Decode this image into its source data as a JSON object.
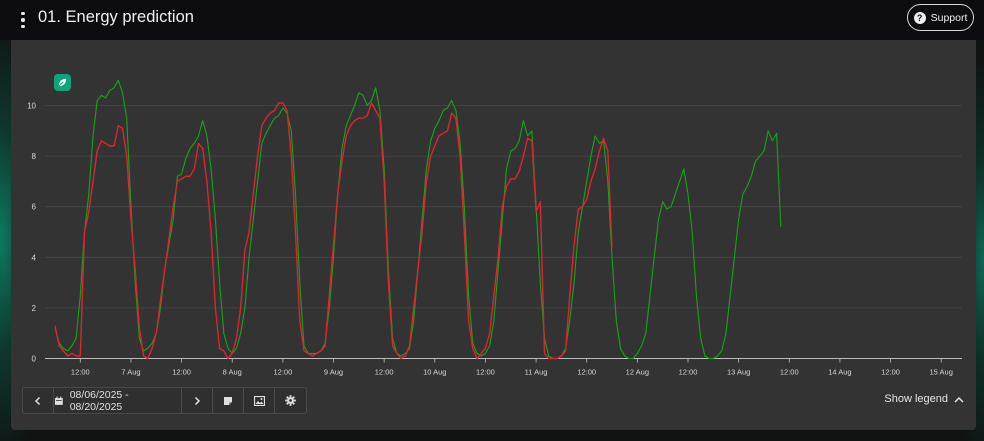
{
  "header": {
    "title": "01. Energy prediction",
    "support_label": "Support"
  },
  "controls": {
    "date_range": "08/06/2025 - 08/20/2025"
  },
  "legend": {
    "toggle_label": "Show legend"
  },
  "colors": {
    "actual": "#d9262f",
    "predicted": "#19a319",
    "badge": "#12a37c"
  },
  "chart_data": {
    "type": "line",
    "yticks": [
      0,
      2,
      4,
      6,
      8,
      10
    ],
    "ylim": [
      0,
      11
    ],
    "xlim": [
      0,
      222
    ],
    "xticks": [
      {
        "h": 6,
        "label": "12:00"
      },
      {
        "h": 18,
        "label": "7 Aug"
      },
      {
        "h": 30,
        "label": "12:00"
      },
      {
        "h": 42,
        "label": "8 Aug"
      },
      {
        "h": 54,
        "label": "12:00"
      },
      {
        "h": 66,
        "label": "9 Aug"
      },
      {
        "h": 78,
        "label": "12:00"
      },
      {
        "h": 90,
        "label": "10 Aug"
      },
      {
        "h": 102,
        "label": "12:00"
      },
      {
        "h": 114,
        "label": "11 Aug"
      },
      {
        "h": 126,
        "label": "12:00"
      },
      {
        "h": 138,
        "label": "12 Aug"
      },
      {
        "h": 150,
        "label": "12:00"
      },
      {
        "h": 162,
        "label": "13 Aug"
      },
      {
        "h": 174,
        "label": "12:00"
      },
      {
        "h": 186,
        "label": "14 Aug"
      },
      {
        "h": 198,
        "label": "12:00"
      },
      {
        "h": 210,
        "label": "15 Aug"
      }
    ],
    "series": [
      {
        "key": "predicted",
        "points": [
          [
            0,
            1.2
          ],
          [
            1,
            0.6
          ],
          [
            2,
            0.4
          ],
          [
            3,
            0.3
          ],
          [
            4,
            0.5
          ],
          [
            5,
            0.8
          ],
          [
            6,
            2.5
          ],
          [
            7,
            5.0
          ],
          [
            8,
            6.5
          ],
          [
            9,
            8.8
          ],
          [
            10,
            10.2
          ],
          [
            11,
            10.4
          ],
          [
            12,
            10.3
          ],
          [
            13,
            10.6
          ],
          [
            14,
            10.7
          ],
          [
            15,
            11.0
          ],
          [
            16,
            10.5
          ],
          [
            17,
            9.5
          ],
          [
            18,
            6.0
          ],
          [
            19,
            3.0
          ],
          [
            20,
            0.8
          ],
          [
            21,
            0.3
          ],
          [
            22,
            0.4
          ],
          [
            23,
            0.6
          ],
          [
            24,
            1.0
          ],
          [
            25,
            2.0
          ],
          [
            26,
            3.5
          ],
          [
            27,
            4.5
          ],
          [
            28,
            5.5
          ],
          [
            29,
            7.2
          ],
          [
            30,
            7.3
          ],
          [
            31,
            7.9
          ],
          [
            32,
            8.3
          ],
          [
            33,
            8.5
          ],
          [
            34,
            8.8
          ],
          [
            35,
            9.4
          ],
          [
            36,
            8.8
          ],
          [
            37,
            7.5
          ],
          [
            38,
            5.5
          ],
          [
            39,
            3.0
          ],
          [
            40,
            1.0
          ],
          [
            41,
            0.4
          ],
          [
            42,
            0.2
          ],
          [
            43,
            0.4
          ],
          [
            44,
            1.0
          ],
          [
            45,
            2.0
          ],
          [
            46,
            4.0
          ],
          [
            47,
            5.5
          ],
          [
            48,
            7.0
          ],
          [
            49,
            8.5
          ],
          [
            50,
            8.9
          ],
          [
            51,
            9.2
          ],
          [
            52,
            9.5
          ],
          [
            53,
            9.6
          ],
          [
            54,
            9.9
          ],
          [
            55,
            9.7
          ],
          [
            56,
            9.0
          ],
          [
            57,
            6.5
          ],
          [
            58,
            3.0
          ],
          [
            59,
            0.5
          ],
          [
            60,
            0.2
          ],
          [
            61,
            0.2
          ],
          [
            62,
            0.2
          ],
          [
            63,
            0.3
          ],
          [
            64,
            0.6
          ],
          [
            65,
            2.0
          ],
          [
            66,
            4.0
          ],
          [
            67,
            6.5
          ],
          [
            68,
            8.3
          ],
          [
            69,
            9.2
          ],
          [
            70,
            9.6
          ],
          [
            71,
            10.0
          ],
          [
            72,
            10.5
          ],
          [
            73,
            10.4
          ],
          [
            74,
            10.0
          ],
          [
            75,
            10.2
          ],
          [
            76,
            10.7
          ],
          [
            77,
            9.8
          ],
          [
            78,
            7.5
          ],
          [
            79,
            3.5
          ],
          [
            80,
            0.8
          ],
          [
            81,
            0.2
          ],
          [
            82,
            0.1
          ],
          [
            83,
            0.2
          ],
          [
            84,
            0.4
          ],
          [
            85,
            1.5
          ],
          [
            86,
            3.5
          ],
          [
            87,
            5.5
          ],
          [
            88,
            7.5
          ],
          [
            89,
            8.6
          ],
          [
            90,
            9.1
          ],
          [
            91,
            9.4
          ],
          [
            92,
            9.8
          ],
          [
            93,
            9.9
          ],
          [
            94,
            10.2
          ],
          [
            95,
            9.8
          ],
          [
            96,
            8.5
          ],
          [
            97,
            6.0
          ],
          [
            98,
            2.5
          ],
          [
            99,
            0.6
          ],
          [
            100,
            0.2
          ],
          [
            101,
            0.1
          ],
          [
            102,
            0.2
          ],
          [
            103,
            0.5
          ],
          [
            104,
            1.5
          ],
          [
            105,
            3.5
          ],
          [
            106,
            5.5
          ],
          [
            107,
            7.5
          ],
          [
            108,
            8.2
          ],
          [
            109,
            8.3
          ],
          [
            110,
            8.6
          ],
          [
            111,
            9.4
          ],
          [
            112,
            8.8
          ],
          [
            113,
            9.0
          ],
          [
            114,
            6.0
          ],
          [
            115,
            3.0
          ],
          [
            116,
            0.8
          ],
          [
            117,
            0.1
          ],
          [
            118,
            0.0
          ],
          [
            119,
            0.0
          ],
          [
            120,
            0.1
          ],
          [
            121,
            0.4
          ],
          [
            122,
            1.5
          ],
          [
            123,
            3.0
          ],
          [
            124,
            5.0
          ],
          [
            125,
            6.0
          ],
          [
            126,
            7.0
          ],
          [
            127,
            8.0
          ],
          [
            128,
            8.8
          ],
          [
            129,
            8.5
          ],
          [
            130,
            8.6
          ],
          [
            131,
            7.0
          ],
          [
            132,
            4.0
          ],
          [
            133,
            1.5
          ],
          [
            134,
            0.4
          ],
          [
            135,
            0.1
          ],
          [
            136,
            0.0
          ],
          [
            137,
            0.0
          ],
          [
            138,
            0.2
          ],
          [
            139,
            0.5
          ],
          [
            140,
            1.0
          ],
          [
            141,
            2.5
          ],
          [
            142,
            4.0
          ],
          [
            143,
            5.5
          ],
          [
            144,
            6.2
          ],
          [
            145,
            5.9
          ],
          [
            146,
            6.0
          ],
          [
            147,
            6.5
          ],
          [
            148,
            7.0
          ],
          [
            149,
            7.5
          ],
          [
            150,
            6.5
          ],
          [
            151,
            5.0
          ],
          [
            152,
            2.5
          ],
          [
            153,
            0.8
          ],
          [
            154,
            0.1
          ],
          [
            155,
            0.0
          ],
          [
            156,
            0.0
          ],
          [
            157,
            0.1
          ],
          [
            158,
            0.3
          ],
          [
            159,
            1.0
          ],
          [
            160,
            2.5
          ],
          [
            161,
            4.0
          ],
          [
            162,
            5.5
          ],
          [
            163,
            6.5
          ],
          [
            164,
            6.8
          ],
          [
            165,
            7.2
          ],
          [
            166,
            7.8
          ],
          [
            167,
            8.0
          ],
          [
            168,
            8.2
          ],
          [
            169,
            9.0
          ],
          [
            170,
            8.6
          ],
          [
            171,
            8.9
          ],
          [
            172,
            5.2
          ]
        ]
      },
      {
        "key": "actual",
        "points": [
          [
            0,
            1.3
          ],
          [
            1,
            0.5
          ],
          [
            2,
            0.3
          ],
          [
            3,
            0.1
          ],
          [
            4,
            0.2
          ],
          [
            5,
            0.1
          ],
          [
            6,
            0.1
          ],
          [
            7,
            5.0
          ],
          [
            8,
            5.8
          ],
          [
            9,
            7.0
          ],
          [
            10,
            8.2
          ],
          [
            11,
            8.6
          ],
          [
            12,
            8.5
          ],
          [
            13,
            8.4
          ],
          [
            14,
            8.4
          ],
          [
            15,
            9.2
          ],
          [
            16,
            9.1
          ],
          [
            17,
            8.0
          ],
          [
            18,
            5.5
          ],
          [
            19,
            3.5
          ],
          [
            20,
            1.2
          ],
          [
            21,
            0.1
          ],
          [
            22,
            0.0
          ],
          [
            23,
            0.4
          ],
          [
            24,
            1.0
          ],
          [
            25,
            2.3
          ],
          [
            26,
            3.5
          ],
          [
            27,
            4.7
          ],
          [
            28,
            6.0
          ],
          [
            29,
            7.0
          ],
          [
            30,
            7.1
          ],
          [
            31,
            7.2
          ],
          [
            32,
            7.2
          ],
          [
            33,
            7.5
          ],
          [
            34,
            8.5
          ],
          [
            35,
            8.3
          ],
          [
            36,
            7.0
          ],
          [
            37,
            5.0
          ],
          [
            38,
            2.0
          ],
          [
            39,
            0.4
          ],
          [
            40,
            0.3
          ],
          [
            41,
            0.0
          ],
          [
            42,
            0.2
          ],
          [
            43,
            0.8
          ],
          [
            44,
            2.0
          ],
          [
            45,
            4.3
          ],
          [
            46,
            5.0
          ],
          [
            47,
            6.5
          ],
          [
            48,
            8.0
          ],
          [
            49,
            9.2
          ],
          [
            50,
            9.5
          ],
          [
            51,
            9.7
          ],
          [
            52,
            9.8
          ],
          [
            53,
            10.1
          ],
          [
            54,
            10.1
          ],
          [
            55,
            9.8
          ],
          [
            56,
            8.0
          ],
          [
            57,
            5.0
          ],
          [
            58,
            1.5
          ],
          [
            59,
            0.3
          ],
          [
            60,
            0.2
          ],
          [
            61,
            0.1
          ],
          [
            62,
            0.2
          ],
          [
            63,
            0.3
          ],
          [
            64,
            0.5
          ],
          [
            65,
            2.5
          ],
          [
            66,
            4.5
          ],
          [
            67,
            6.5
          ],
          [
            68,
            7.8
          ],
          [
            69,
            8.8
          ],
          [
            70,
            9.2
          ],
          [
            71,
            9.4
          ],
          [
            72,
            9.5
          ],
          [
            73,
            9.5
          ],
          [
            74,
            9.6
          ],
          [
            75,
            10.1
          ],
          [
            76,
            9.8
          ],
          [
            77,
            9.5
          ],
          [
            78,
            7.0
          ],
          [
            79,
            3.0
          ],
          [
            80,
            0.5
          ],
          [
            81,
            0.2
          ],
          [
            82,
            0.0
          ],
          [
            83,
            0.1
          ],
          [
            84,
            0.5
          ],
          [
            85,
            2.0
          ],
          [
            86,
            3.5
          ],
          [
            87,
            5.0
          ],
          [
            88,
            7.0
          ],
          [
            89,
            8.0
          ],
          [
            90,
            8.4
          ],
          [
            91,
            8.8
          ],
          [
            92,
            8.9
          ],
          [
            93,
            9.0
          ],
          [
            94,
            9.7
          ],
          [
            95,
            9.5
          ],
          [
            96,
            8.0
          ],
          [
            97,
            5.0
          ],
          [
            98,
            1.5
          ],
          [
            99,
            0.4
          ],
          [
            100,
            0.0
          ],
          [
            101,
            0.2
          ],
          [
            102,
            0.4
          ],
          [
            103,
            1.0
          ],
          [
            104,
            2.5
          ],
          [
            105,
            4.0
          ],
          [
            106,
            6.0
          ],
          [
            107,
            6.8
          ],
          [
            108,
            7.1
          ],
          [
            109,
            7.1
          ],
          [
            110,
            7.4
          ],
          [
            111,
            8.0
          ],
          [
            112,
            8.7
          ],
          [
            113,
            8.6
          ],
          [
            114,
            5.8
          ],
          [
            115,
            6.2
          ],
          [
            116,
            0.2
          ],
          [
            117,
            0.0
          ],
          [
            118,
            0.0
          ],
          [
            119,
            0.0
          ],
          [
            120,
            0.1
          ],
          [
            121,
            0.3
          ],
          [
            122,
            2.5
          ],
          [
            123,
            4.5
          ],
          [
            124,
            5.9
          ],
          [
            125,
            6.0
          ],
          [
            126,
            6.3
          ],
          [
            127,
            7.0
          ],
          [
            128,
            7.5
          ],
          [
            129,
            8.2
          ],
          [
            130,
            8.7
          ],
          [
            131,
            8.2
          ],
          [
            132,
            4.4
          ]
        ]
      }
    ]
  }
}
